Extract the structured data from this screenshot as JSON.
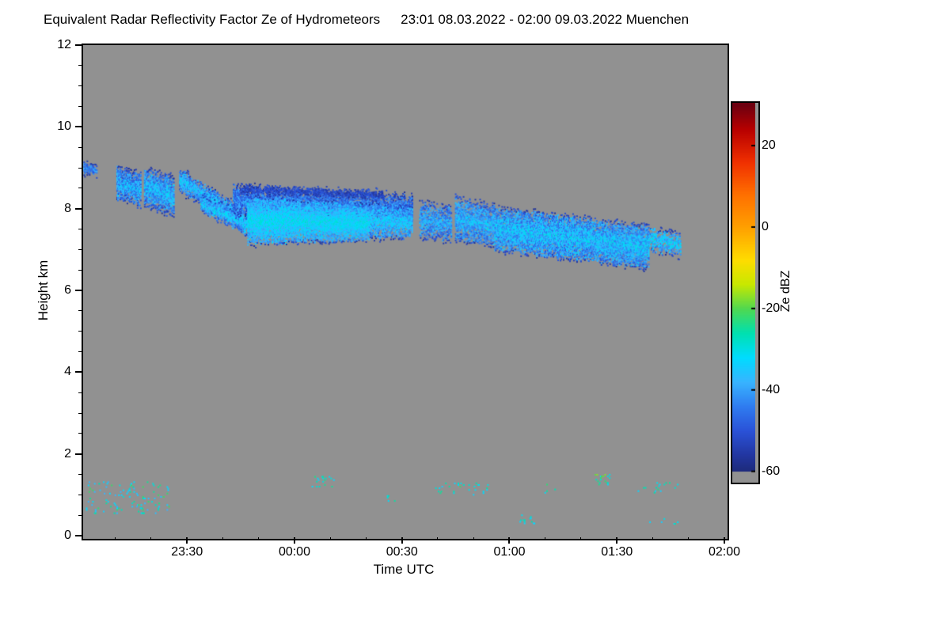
{
  "header": {
    "title": "Equivalent Radar Reflectivity Factor Ze of Hydrometeors",
    "period": "23:01 08.03.2022 - 02:00 09.03.2022 Muenchen"
  },
  "axes": {
    "xlabel": "Time UTC",
    "ylabel": "Height km"
  },
  "chart_data": {
    "type": "heatmap",
    "title": "Equivalent Radar Reflectivity Factor Ze of Hydrometeors",
    "subtitle": "23:01 08.03.2022 - 02:00 09.03.2022 Muenchen",
    "station": "Muenchen",
    "xlabel": "Time UTC",
    "ylabel": "Height km",
    "ylim": [
      0,
      12
    ],
    "y_ticks": [
      0,
      2,
      4,
      6,
      8,
      10,
      12
    ],
    "x_range_minutes": [
      0,
      179
    ],
    "x_start_time": "23:01",
    "x_end_time": "02:00",
    "x_ticks": [
      {
        "label": "23:30",
        "t": 29
      },
      {
        "label": "00:00",
        "t": 59
      },
      {
        "label": "00:30",
        "t": 89
      },
      {
        "label": "01:00",
        "t": 119
      },
      {
        "label": "01:30",
        "t": 149
      },
      {
        "label": "02:00",
        "t": 179
      }
    ],
    "background_color": "#919191",
    "colorbar": {
      "label": "Ze dBZ",
      "range": [
        -62,
        30.5
      ],
      "ticks": [
        20,
        0,
        -20,
        -40,
        -60
      ],
      "gray_below": -60
    },
    "colormap": [
      [
        30,
        "#6e0010"
      ],
      [
        24,
        "#b80000"
      ],
      [
        16,
        "#f03000"
      ],
      [
        8,
        "#ff7000"
      ],
      [
        0,
        "#ffa000"
      ],
      [
        -8,
        "#ffdc00"
      ],
      [
        -14,
        "#c8e800"
      ],
      [
        -20,
        "#50d850"
      ],
      [
        -26,
        "#00e0b0"
      ],
      [
        -32,
        "#00dcff"
      ],
      [
        -38,
        "#38b4ff"
      ],
      [
        -44,
        "#2f7cf0"
      ],
      [
        -50,
        "#2a52d8"
      ],
      [
        -56,
        "#2236a0"
      ],
      [
        -62,
        "#1a2468"
      ]
    ],
    "echo_regions": [
      {
        "t0": 0.3,
        "t1": 4.0,
        "top0": 9.12,
        "top1": 9.0,
        "bot0": 8.86,
        "bot1": 8.84,
        "dbz": -42,
        "spread": 6,
        "density": 0.75,
        "edge": 8
      },
      {
        "t0": 9.5,
        "t1": 16.2,
        "top0": 9.0,
        "top1": 8.85,
        "bot0": 8.25,
        "bot1": 8.05,
        "dbz": -38,
        "spread": 8,
        "density": 0.8,
        "edge": 10
      },
      {
        "t0": 17.2,
        "t1": 25.5,
        "top0": 8.95,
        "top1": 8.75,
        "bot0": 8.1,
        "bot1": 7.85,
        "dbz": -37,
        "spread": 8,
        "density": 0.8,
        "edge": 10
      },
      {
        "t0": 27.0,
        "t1": 45.0,
        "top0": 8.95,
        "top1": 7.95,
        "bot0": 8.45,
        "bot1": 7.5,
        "dbz": -36,
        "spread": 7,
        "density": 0.85,
        "edge": 10
      },
      {
        "t0": 33.0,
        "t1": 47.5,
        "top0": 8.3,
        "top1": 7.75,
        "bot0": 7.95,
        "bot1": 7.3,
        "dbz": -35,
        "spread": 7,
        "density": 0.8,
        "edge": 10
      },
      {
        "t0": 42.0,
        "t1": 92.0,
        "top0": 8.55,
        "top1": 8.3,
        "bot0": 7.85,
        "bot1": 7.65,
        "dbz": -42,
        "spread": 7,
        "density": 0.75,
        "edge": 9
      },
      {
        "t0": 44.0,
        "t1": 84.0,
        "top0": 8.52,
        "top1": 8.38,
        "bot0": 8.42,
        "bot1": 8.28,
        "dbz": -52,
        "spread": 4,
        "density": 0.7,
        "edge": 2
      },
      {
        "t0": 46.0,
        "t1": 80.0,
        "top0": 8.25,
        "top1": 8.05,
        "bot0": 7.15,
        "bot1": 7.25,
        "dbz": -32,
        "spread": 5,
        "density": 0.92,
        "edge": 9
      },
      {
        "t0": 80.0,
        "t1": 92.0,
        "top0": 8.1,
        "top1": 8.0,
        "bot0": 7.3,
        "bot1": 7.3,
        "dbz": -35,
        "spread": 6,
        "density": 0.7,
        "edge": 9
      },
      {
        "t0": 94.0,
        "t1": 103.0,
        "top0": 8.15,
        "top1": 8.0,
        "bot0": 7.3,
        "bot1": 7.2,
        "dbz": -38,
        "spread": 7,
        "density": 0.6,
        "edge": 10
      },
      {
        "t0": 104.0,
        "t1": 115.0,
        "top0": 8.25,
        "top1": 8.05,
        "bot0": 7.25,
        "bot1": 7.1,
        "dbz": -37,
        "spread": 7,
        "density": 0.7,
        "edge": 10
      },
      {
        "t0": 115.0,
        "t1": 158.0,
        "top0": 8.0,
        "top1": 7.55,
        "bot0": 7.0,
        "bot1": 6.55,
        "dbz": -36,
        "spread": 8,
        "density": 0.88,
        "edge": 9
      },
      {
        "t0": 158.0,
        "t1": 167.0,
        "top0": 7.5,
        "top1": 7.35,
        "bot0": 7.0,
        "bot1": 6.85,
        "dbz": -35,
        "spread": 7,
        "density": 0.55,
        "edge": 8
      }
    ],
    "surface_specks": [
      {
        "t0": 1,
        "t1": 24,
        "h0": 0.55,
        "h1": 1.35,
        "density": 0.05,
        "dbz": -30,
        "spread": 9
      },
      {
        "t0": 64,
        "t1": 70,
        "h0": 1.2,
        "h1": 1.45,
        "density": 0.1,
        "dbz": -29,
        "spread": 6
      },
      {
        "t0": 84,
        "t1": 88,
        "h0": 0.85,
        "h1": 1.0,
        "density": 0.05,
        "dbz": -30,
        "spread": 5
      },
      {
        "t0": 98,
        "t1": 113,
        "h0": 1.0,
        "h1": 1.3,
        "density": 0.06,
        "dbz": -28,
        "spread": 7
      },
      {
        "t0": 122,
        "t1": 126,
        "h0": 0.3,
        "h1": 0.5,
        "density": 0.05,
        "dbz": -30,
        "spread": 5
      },
      {
        "t0": 128,
        "t1": 132,
        "h0": 1.05,
        "h1": 1.3,
        "density": 0.08,
        "dbz": -26,
        "spread": 8
      },
      {
        "t0": 143,
        "t1": 147,
        "h0": 1.25,
        "h1": 1.5,
        "density": 0.14,
        "dbz": -25,
        "spread": 8
      },
      {
        "t0": 155,
        "t1": 166,
        "h0": 1.05,
        "h1": 1.3,
        "density": 0.05,
        "dbz": -29,
        "spread": 6
      },
      {
        "t0": 158,
        "t1": 166,
        "h0": 0.25,
        "h1": 0.45,
        "density": 0.05,
        "dbz": -31,
        "spread": 5
      }
    ]
  }
}
